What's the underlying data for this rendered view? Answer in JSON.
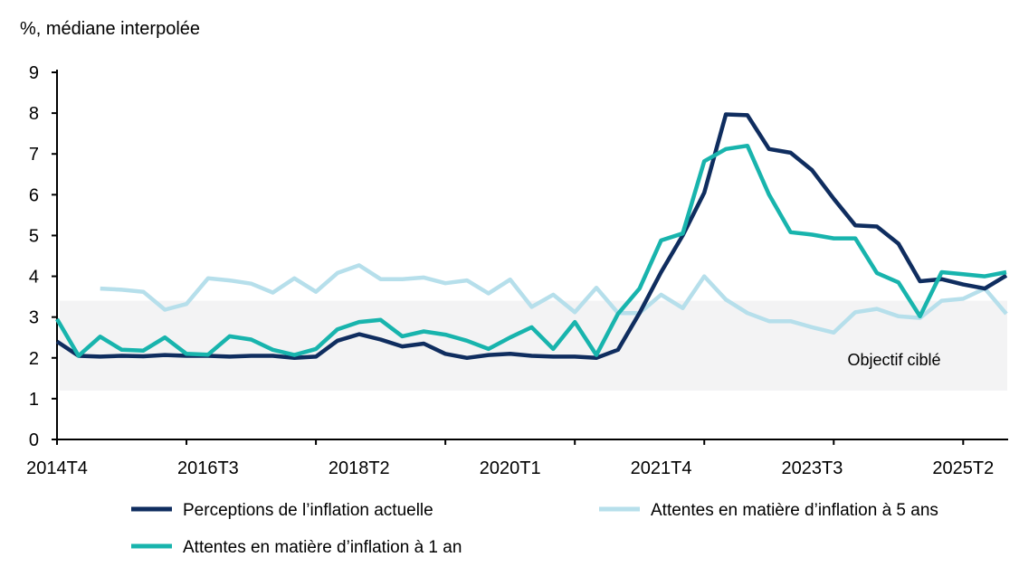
{
  "chart_data": {
    "type": "line",
    "ylabel": "%, médiane interpolée",
    "ylim": [
      0,
      9
    ],
    "yticks": [
      0,
      1,
      2,
      3,
      4,
      5,
      6,
      7,
      8,
      9
    ],
    "x_start": "2014T4",
    "x_tick_labels": [
      "2014T4",
      "2016T3",
      "2018T2",
      "2020T1",
      "2021T4",
      "2023T3",
      "2025T2"
    ],
    "x_tick_label_indices": [
      0,
      7,
      14,
      21,
      28,
      35,
      42
    ],
    "x_tick_mark_every": 6,
    "n_points": 45,
    "band": {
      "label": "Objectif ciblé",
      "range": [
        1.2,
        3.4
      ],
      "color": "#f3f3f4"
    },
    "series": [
      {
        "name": "Perceptions de l’inflation actuelle",
        "color": "#0f2d5f",
        "values": [
          2.4,
          2.05,
          2.03,
          2.05,
          2.04,
          2.07,
          2.05,
          2.05,
          2.03,
          2.05,
          2.05,
          2.0,
          2.03,
          2.42,
          2.58,
          2.45,
          2.28,
          2.35,
          2.1,
          2.0,
          2.07,
          2.1,
          2.05,
          2.03,
          2.03,
          2.0,
          2.2,
          3.1,
          4.1,
          5.0,
          6.05,
          7.97,
          7.95,
          7.12,
          7.03,
          6.6,
          5.9,
          5.25,
          5.22,
          4.8,
          3.88,
          3.93,
          3.8,
          3.7,
          4.02
        ]
      },
      {
        "name": "Attentes en matière d’inflation à 5 ans",
        "color": "#b6dfeb",
        "values": [
          null,
          null,
          3.7,
          3.67,
          3.62,
          3.18,
          3.32,
          3.95,
          3.9,
          3.82,
          3.6,
          3.95,
          3.62,
          4.08,
          4.27,
          3.93,
          3.93,
          3.97,
          3.83,
          3.9,
          3.58,
          3.92,
          3.25,
          3.55,
          3.12,
          3.72,
          3.1,
          3.1,
          3.55,
          3.22,
          4.0,
          3.43,
          3.1,
          2.9,
          2.9,
          2.75,
          2.62,
          3.12,
          3.2,
          3.02,
          2.98,
          3.4,
          3.45,
          3.7,
          3.08
        ]
      },
      {
        "name": "Attentes en matière d’inflation à 1 an",
        "color": "#18b4ad",
        "values": [
          2.95,
          2.05,
          2.52,
          2.2,
          2.18,
          2.5,
          2.1,
          2.08,
          2.53,
          2.45,
          2.2,
          2.07,
          2.22,
          2.7,
          2.88,
          2.93,
          2.53,
          2.65,
          2.57,
          2.42,
          2.22,
          2.5,
          2.75,
          2.22,
          2.88,
          2.07,
          3.08,
          3.7,
          4.88,
          5.05,
          6.82,
          7.12,
          7.2,
          6.0,
          5.08,
          5.02,
          4.93,
          4.93,
          4.08,
          3.85,
          3.02,
          4.1,
          4.05,
          4.0,
          4.1
        ]
      }
    ],
    "legend": "bottom"
  }
}
